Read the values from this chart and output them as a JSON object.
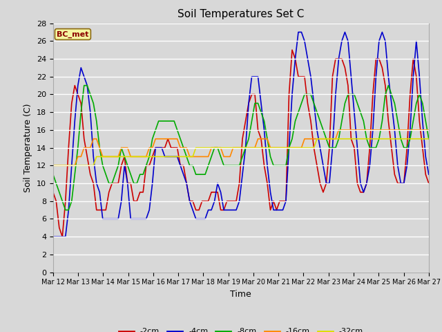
{
  "title": "Soil Temperatures Set C",
  "xlabel": "Time",
  "ylabel": "Soil Temperature (C)",
  "ylim": [
    0,
    28
  ],
  "yticks": [
    0,
    2,
    4,
    6,
    8,
    10,
    12,
    14,
    16,
    18,
    20,
    22,
    24,
    26,
    28
  ],
  "label_text": "BC_met",
  "bg_color": "#d8d8d8",
  "plot_bg_color": "#d8d8d8",
  "series_colors": {
    "-2cm": "#cc0000",
    "-4cm": "#0000cc",
    "-8cm": "#00aa00",
    "-16cm": "#ff8800",
    "-32cm": "#dddd00"
  },
  "x_labels": [
    "Mar 12",
    "Mar 13",
    "Mar 14",
    "Mar 15",
    "Mar 16",
    "Mar 17",
    "Mar 18",
    "Mar 19",
    "Mar 20",
    "Mar 21",
    "Mar 22",
    "Mar 23",
    "Mar 24",
    "Mar 25",
    "Mar 26",
    "Mar 27"
  ],
  "depth_minus2": [
    9,
    8,
    5,
    4,
    8,
    14,
    19,
    21,
    20,
    19,
    15,
    13,
    11,
    10,
    7,
    7,
    7,
    7,
    9,
    10,
    10,
    10,
    12,
    13,
    10,
    10,
    8,
    8,
    9,
    9,
    12,
    12,
    13,
    14,
    14,
    14,
    14,
    15,
    14,
    14,
    14,
    12,
    12,
    10,
    8,
    8,
    7,
    7,
    8,
    8,
    8,
    9,
    9,
    9,
    7,
    7,
    8,
    8,
    8,
    8,
    10,
    15,
    17,
    19,
    20,
    20,
    16,
    15,
    12,
    10,
    7,
    8,
    7,
    8,
    8,
    8,
    20,
    25,
    24,
    22,
    22,
    22,
    19,
    17,
    14,
    12,
    10,
    9,
    10,
    14,
    22,
    24,
    24,
    24,
    23,
    21,
    15,
    14,
    10,
    9,
    9,
    10,
    14,
    20,
    24,
    24,
    23,
    21,
    17,
    14,
    11,
    10,
    10,
    10,
    14,
    20,
    24,
    22,
    17,
    14,
    11,
    10
  ],
  "depth_minus4": [
    4,
    4,
    4,
    4,
    4,
    7,
    12,
    17,
    21,
    23,
    22,
    21,
    18,
    13,
    10,
    9,
    6,
    6,
    6,
    6,
    6,
    6,
    8,
    12,
    10,
    6,
    6,
    6,
    6,
    6,
    6,
    7,
    10,
    14,
    14,
    14,
    13,
    13,
    13,
    13,
    13,
    12,
    11,
    10,
    8,
    7,
    6,
    6,
    6,
    6,
    7,
    7,
    8,
    10,
    9,
    7,
    7,
    7,
    7,
    7,
    8,
    11,
    14,
    19,
    22,
    22,
    22,
    19,
    16,
    12,
    9,
    7,
    7,
    7,
    7,
    8,
    14,
    20,
    24,
    27,
    27,
    26,
    24,
    22,
    19,
    16,
    14,
    12,
    10,
    10,
    14,
    20,
    24,
    26,
    27,
    26,
    22,
    18,
    14,
    10,
    9,
    10,
    12,
    16,
    22,
    26,
    27,
    26,
    22,
    19,
    16,
    12,
    10,
    10,
    12,
    16,
    22,
    26,
    22,
    17,
    13,
    11
  ],
  "depth_minus8": [
    11,
    10,
    9,
    8,
    7,
    7,
    8,
    11,
    14,
    18,
    21,
    21,
    20,
    19,
    17,
    14,
    12,
    11,
    10,
    10,
    11,
    12,
    14,
    13,
    12,
    11,
    10,
    10,
    11,
    11,
    12,
    13,
    15,
    16,
    17,
    17,
    17,
    17,
    17,
    17,
    16,
    15,
    14,
    13,
    12,
    12,
    11,
    11,
    11,
    11,
    12,
    13,
    14,
    14,
    13,
    12,
    12,
    12,
    12,
    12,
    12,
    13,
    14,
    15,
    17,
    19,
    19,
    18,
    17,
    15,
    13,
    12,
    12,
    12,
    12,
    12,
    14,
    15,
    17,
    18,
    19,
    20,
    20,
    20,
    19,
    18,
    17,
    16,
    15,
    14,
    14,
    14,
    15,
    17,
    19,
    20,
    20,
    20,
    19,
    18,
    17,
    15,
    14,
    14,
    14,
    15,
    17,
    20,
    21,
    20,
    19,
    17,
    15,
    14,
    14,
    15,
    17,
    19,
    20,
    19,
    17,
    15
  ],
  "depth_minus16": [
    12,
    12,
    12,
    12,
    12,
    12,
    12,
    12,
    13,
    13,
    14,
    14,
    14,
    15,
    15,
    14,
    13,
    13,
    13,
    13,
    13,
    13,
    14,
    14,
    14,
    13,
    13,
    13,
    13,
    13,
    13,
    14,
    14,
    15,
    15,
    15,
    15,
    15,
    15,
    15,
    15,
    14,
    14,
    14,
    13,
    13,
    13,
    13,
    13,
    13,
    13,
    14,
    14,
    14,
    14,
    13,
    13,
    13,
    14,
    14,
    14,
    14,
    14,
    14,
    14,
    14,
    15,
    15,
    15,
    15,
    14,
    14,
    14,
    14,
    14,
    14,
    14,
    14,
    14,
    14,
    14,
    15,
    15,
    15,
    15,
    15,
    15,
    15,
    15,
    15,
    15,
    15,
    16,
    16,
    16,
    16,
    16,
    16,
    16,
    16,
    16,
    16,
    16,
    16,
    16,
    16,
    16,
    16,
    16,
    16,
    16,
    16,
    16,
    16,
    16,
    16,
    16,
    16,
    16,
    16,
    16,
    16
  ],
  "depth_minus32": [
    12,
    12,
    12,
    12,
    12,
    12,
    12,
    12,
    12,
    12,
    12,
    12,
    12,
    12,
    13,
    13,
    13,
    13,
    13,
    13,
    13,
    13,
    13,
    13,
    13,
    13,
    13,
    13,
    13,
    13,
    13,
    13,
    13,
    13,
    13,
    13,
    13,
    13,
    13,
    13,
    13,
    13,
    13,
    13,
    13,
    13,
    14,
    14,
    14,
    14,
    14,
    14,
    14,
    14,
    14,
    14,
    14,
    14,
    14,
    14,
    14,
    14,
    14,
    14,
    14,
    14,
    14,
    14,
    14,
    14,
    14,
    14,
    14,
    14,
    14,
    14,
    14,
    14,
    14,
    14,
    14,
    14,
    14,
    14,
    14,
    15,
    15,
    15,
    15,
    15,
    15,
    15,
    15,
    15,
    15,
    15,
    15,
    15,
    15,
    15,
    15,
    15,
    15,
    15,
    15,
    15,
    15,
    15,
    15,
    15,
    15,
    15,
    15,
    15,
    15,
    15,
    15,
    15,
    15,
    15,
    15,
    15
  ]
}
